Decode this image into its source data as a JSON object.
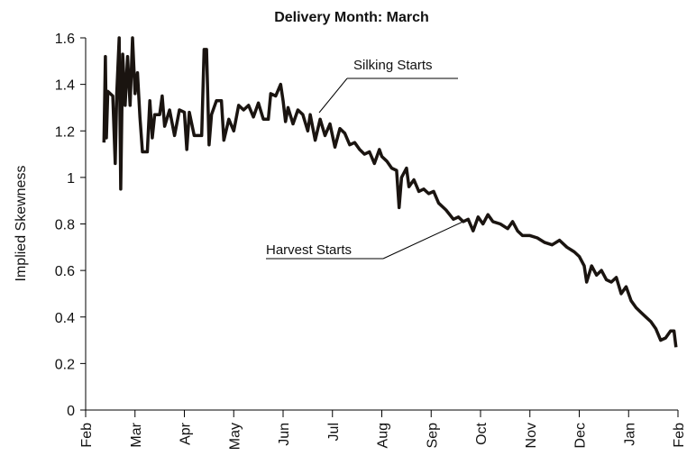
{
  "chart_data": {
    "type": "line",
    "title": "Delivery Month: March",
    "y_label": "Implied Skewness",
    "annotations": [
      "Silking Starts",
      "Harvest Starts"
    ],
    "color": "#1a1410",
    "xlim": [
      0,
      12
    ],
    "xticks": [
      {
        "value": 0,
        "label": "Feb"
      },
      {
        "value": 1,
        "label": "Mar"
      },
      {
        "value": 2,
        "label": "Apr"
      },
      {
        "value": 3,
        "label": "May"
      },
      {
        "value": 4,
        "label": "Jun"
      },
      {
        "value": 5,
        "label": "Jul"
      },
      {
        "value": 6,
        "label": "Aug"
      },
      {
        "value": 7,
        "label": "Sep"
      },
      {
        "value": 8,
        "label": "Oct"
      },
      {
        "value": 9,
        "label": "Nov"
      },
      {
        "value": 10,
        "label": "Dec"
      },
      {
        "value": 11,
        "label": "Jan"
      },
      {
        "value": 12,
        "label": "Feb"
      }
    ],
    "ylim": [
      0,
      1.6
    ],
    "yticks": [
      0,
      0.2,
      0.4,
      0.6,
      0.8,
      1,
      1.2,
      1.4,
      1.6
    ],
    "x": [
      0.37,
      0.4,
      0.42,
      0.45,
      0.55,
      0.6,
      0.63,
      0.68,
      0.71,
      0.75,
      0.8,
      0.85,
      0.9,
      0.95,
      1.0,
      1.05,
      1.1,
      1.15,
      1.25,
      1.3,
      1.35,
      1.4,
      1.5,
      1.55,
      1.6,
      1.7,
      1.8,
      1.9,
      2.0,
      2.05,
      2.1,
      2.2,
      2.35,
      2.4,
      2.45,
      2.5,
      2.55,
      2.65,
      2.75,
      2.8,
      2.9,
      3.0,
      3.1,
      3.2,
      3.3,
      3.4,
      3.5,
      3.6,
      3.7,
      3.75,
      3.85,
      3.95,
      4.0,
      4.05,
      4.1,
      4.2,
      4.3,
      4.4,
      4.5,
      4.55,
      4.65,
      4.75,
      4.85,
      4.95,
      5.05,
      5.15,
      5.25,
      5.35,
      5.45,
      5.55,
      5.65,
      5.75,
      5.85,
      5.95,
      6.0,
      6.1,
      6.2,
      6.3,
      6.35,
      6.4,
      6.5,
      6.55,
      6.65,
      6.75,
      6.85,
      6.95,
      7.05,
      7.15,
      7.3,
      7.45,
      7.55,
      7.65,
      7.75,
      7.85,
      7.95,
      8.05,
      8.15,
      8.25,
      8.4,
      8.55,
      8.65,
      8.75,
      8.85,
      9.0,
      9.15,
      9.3,
      9.45,
      9.6,
      9.75,
      9.9,
      10.0,
      10.1,
      10.15,
      10.25,
      10.35,
      10.45,
      10.55,
      10.65,
      10.75,
      10.85,
      10.95,
      11.05,
      11.15,
      11.25,
      11.35,
      11.45,
      11.55,
      11.65,
      11.75,
      11.85,
      11.92,
      11.96
    ],
    "values": [
      1.15,
      1.52,
      1.17,
      1.37,
      1.35,
      1.06,
      1.36,
      1.6,
      0.95,
      1.53,
      1.31,
      1.52,
      1.31,
      1.6,
      1.36,
      1.45,
      1.26,
      1.11,
      1.11,
      1.33,
      1.17,
      1.27,
      1.27,
      1.35,
      1.22,
      1.29,
      1.18,
      1.29,
      1.28,
      1.12,
      1.28,
      1.18,
      1.18,
      1.55,
      1.55,
      1.14,
      1.27,
      1.33,
      1.33,
      1.16,
      1.25,
      1.2,
      1.31,
      1.29,
      1.31,
      1.26,
      1.32,
      1.25,
      1.25,
      1.36,
      1.35,
      1.4,
      1.33,
      1.24,
      1.3,
      1.23,
      1.29,
      1.27,
      1.2,
      1.27,
      1.16,
      1.25,
      1.18,
      1.23,
      1.13,
      1.21,
      1.19,
      1.14,
      1.15,
      1.12,
      1.1,
      1.11,
      1.06,
      1.12,
      1.09,
      1.07,
      1.04,
      1.03,
      0.87,
      1.0,
      1.04,
      0.96,
      0.99,
      0.94,
      0.95,
      0.93,
      0.94,
      0.89,
      0.86,
      0.82,
      0.83,
      0.81,
      0.82,
      0.77,
      0.83,
      0.8,
      0.84,
      0.81,
      0.8,
      0.78,
      0.81,
      0.77,
      0.75,
      0.75,
      0.74,
      0.72,
      0.71,
      0.73,
      0.7,
      0.68,
      0.66,
      0.62,
      0.55,
      0.62,
      0.58,
      0.6,
      0.56,
      0.55,
      0.57,
      0.5,
      0.53,
      0.47,
      0.44,
      0.42,
      0.4,
      0.38,
      0.35,
      0.3,
      0.31,
      0.34,
      0.34,
      0.27
    ]
  }
}
